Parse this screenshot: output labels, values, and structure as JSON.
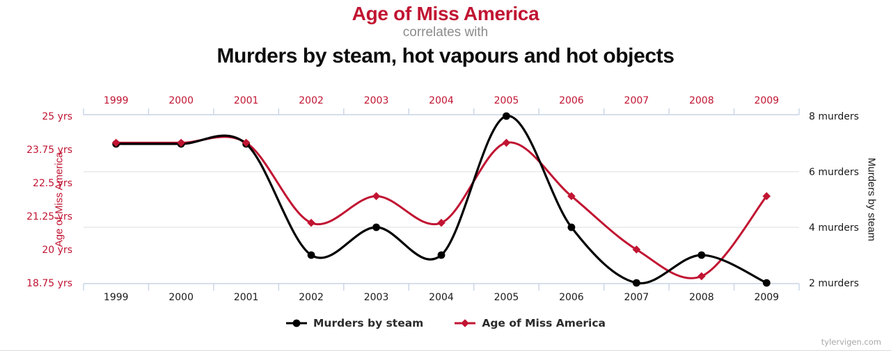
{
  "header": {
    "title": "Age of Miss America",
    "subtitle": "correlates with",
    "secondary_title": "Murders by steam, hot vapours and hot objects"
  },
  "chart_data": {
    "type": "line",
    "x": [
      1999,
      2000,
      2001,
      2002,
      2003,
      2004,
      2005,
      2006,
      2007,
      2008,
      2009
    ],
    "series": [
      {
        "name": "Murders by steam",
        "color": "#000000",
        "marker": "circle",
        "axis": "right",
        "values": [
          7,
          7,
          7,
          3,
          4,
          3,
          8,
          4,
          2,
          3,
          2
        ]
      },
      {
        "name": "Age of Miss America",
        "color": "#c11432",
        "marker": "diamond",
        "axis": "left",
        "values": [
          24,
          24,
          24,
          21,
          22,
          21,
          24,
          22,
          20,
          19,
          22
        ]
      }
    ],
    "left_axis": {
      "title": "Age of Miss America",
      "color": "#c11432",
      "tick_labels": [
        "25 yrs",
        "23.75 yrs",
        "22.5 yrs",
        "21.25 yrs",
        "20 yrs",
        "18.75 yrs"
      ],
      "tick_values": [
        25,
        23.75,
        22.5,
        21.25,
        20,
        18.75
      ],
      "range": [
        18.75,
        25
      ]
    },
    "right_axis": {
      "title": "Murders by steam",
      "color": "#1a1a1a",
      "tick_labels": [
        "8 murders",
        "6 murders",
        "4 murders",
        "2 murders"
      ],
      "tick_values": [
        8,
        6,
        4,
        2
      ],
      "range": [
        2,
        8
      ],
      "grid_values": [
        6,
        4
      ]
    },
    "x_axis": {
      "top_label_color": "#c11432",
      "bottom_label_color": "#1a1a1a",
      "line_color": "#c8d4e4"
    },
    "grid_color": "#dcdcdc",
    "legend_position": "bottom"
  },
  "footer": {
    "watermark": "tylervigen.com"
  }
}
